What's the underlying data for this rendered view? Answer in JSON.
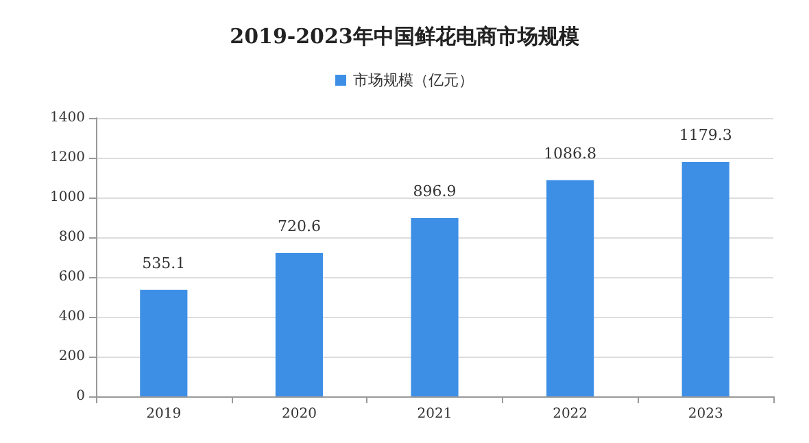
{
  "chart_data": {
    "type": "bar",
    "title": "2019-2023年中国鲜花电商市场规模",
    "categories": [
      "2019",
      "2020",
      "2021",
      "2022",
      "2023"
    ],
    "series": [
      {
        "name": "市场规模（亿元）",
        "color": "#3d8fe6",
        "values": [
          535.1,
          720.6,
          896.9,
          1086.8,
          1179.3
        ]
      }
    ],
    "ylim": [
      0,
      1400
    ],
    "yticks": [
      0,
      200,
      400,
      600,
      800,
      1000,
      1200,
      1400
    ],
    "grid": "y",
    "legend": "top",
    "data_labels": true
  }
}
